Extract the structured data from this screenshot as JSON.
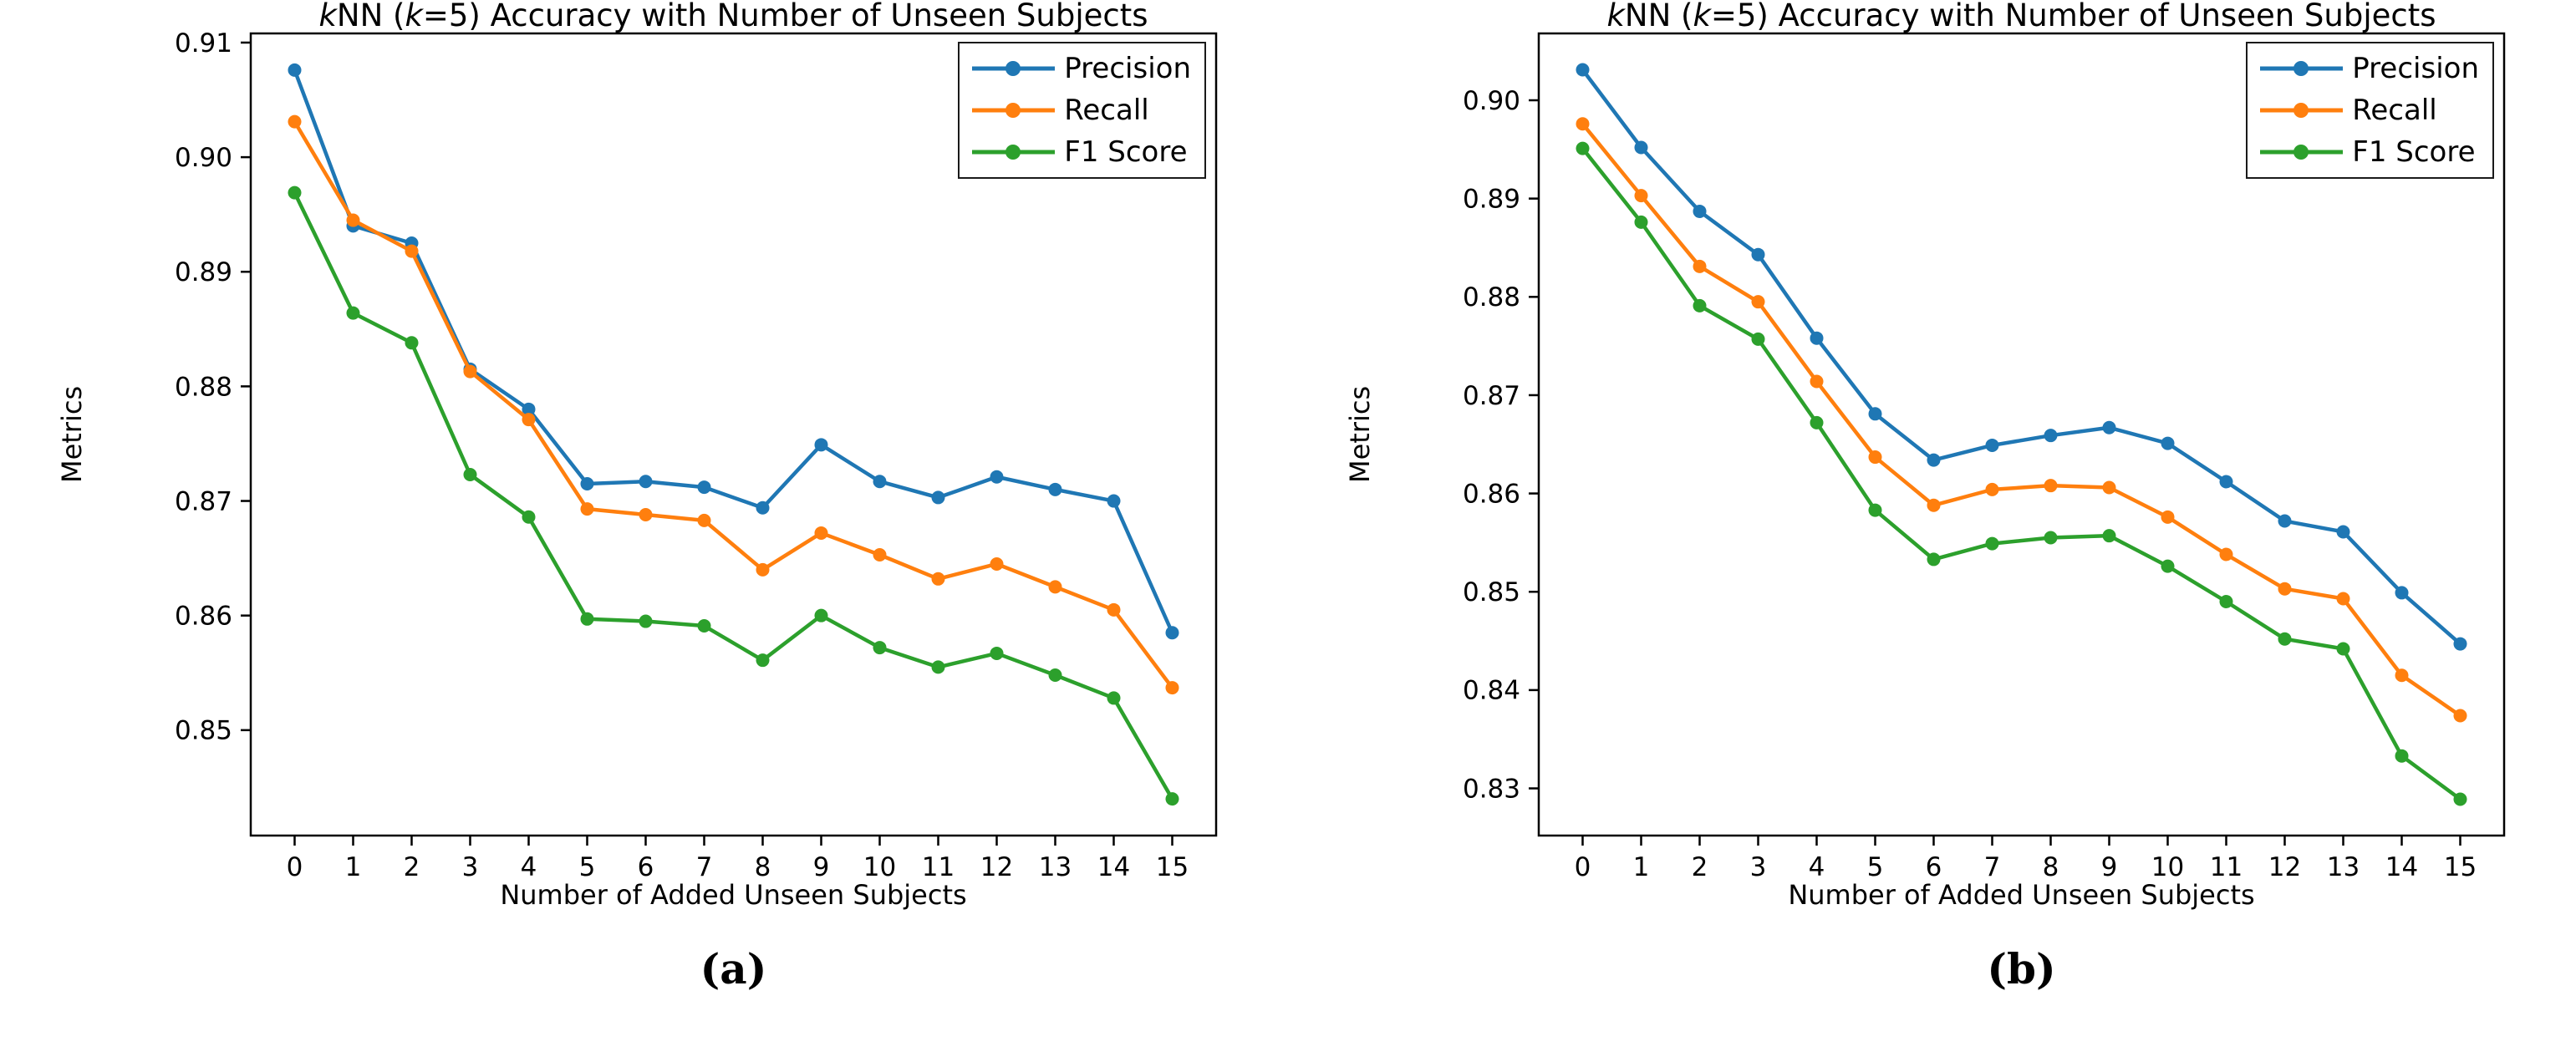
{
  "figure": {
    "background": "#ffffff",
    "text_color": "#000000",
    "axis_color": "#000000"
  },
  "chart_data": [
    {
      "id": "a",
      "type": "line",
      "title": "kNN (k=5) Accuracy with Number of Unseen Subjects",
      "title_parts": [
        {
          "text": "k",
          "italic": true
        },
        {
          "text": "NN (",
          "italic": false
        },
        {
          "text": "k",
          "italic": true
        },
        {
          "text": "=5) Accuracy with Number of Unseen Subjects",
          "italic": false
        }
      ],
      "xlabel": "Number of Added Unseen Subjects",
      "ylabel": "Metrics",
      "sublabel": "(a)",
      "x": [
        0,
        1,
        2,
        3,
        4,
        5,
        6,
        7,
        8,
        9,
        10,
        11,
        12,
        13,
        14,
        15
      ],
      "xlim": [
        -0.75,
        15.75
      ],
      "ylim": [
        0.8408,
        0.9108
      ],
      "yticks": [
        0.85,
        0.86,
        0.87,
        0.88,
        0.89,
        0.9,
        0.91
      ],
      "grid": false,
      "legend_position": "upper right",
      "series": [
        {
          "name": "Precision",
          "color": "#1f77b4",
          "marker": "circle",
          "values": [
            0.9076,
            0.894,
            0.8925,
            0.8815,
            0.878,
            0.8715,
            0.8717,
            0.8712,
            0.8694,
            0.8749,
            0.8717,
            0.8703,
            0.8721,
            0.871,
            0.87,
            0.8585
          ]
        },
        {
          "name": "Recall",
          "color": "#ff7f0e",
          "marker": "circle",
          "values": [
            0.9031,
            0.8945,
            0.8918,
            0.8813,
            0.8771,
            0.8693,
            0.8688,
            0.8683,
            0.864,
            0.8672,
            0.8653,
            0.8632,
            0.8645,
            0.8625,
            0.8605,
            0.8537
          ]
        },
        {
          "name": "F1 Score",
          "color": "#2ca02c",
          "marker": "circle",
          "values": [
            0.8969,
            0.8864,
            0.8838,
            0.8723,
            0.8686,
            0.8597,
            0.8595,
            0.8591,
            0.8561,
            0.86,
            0.8572,
            0.8555,
            0.8567,
            0.8548,
            0.8528,
            0.844
          ]
        }
      ]
    },
    {
      "id": "b",
      "type": "line",
      "title": "kNN (k=5) Accuracy with Number of Unseen Subjects",
      "title_parts": [
        {
          "text": "k",
          "italic": true
        },
        {
          "text": "NN (",
          "italic": false
        },
        {
          "text": "k",
          "italic": true
        },
        {
          "text": "=5) Accuracy with Number of Unseen Subjects",
          "italic": false
        }
      ],
      "xlabel": "Number of Added Unseen Subjects",
      "ylabel": "Metrics",
      "sublabel": "(b)",
      "x": [
        0,
        1,
        2,
        3,
        4,
        5,
        6,
        7,
        8,
        9,
        10,
        11,
        12,
        13,
        14,
        15
      ],
      "xlim": [
        -0.75,
        15.75
      ],
      "ylim": [
        0.8252,
        0.9068
      ],
      "yticks": [
        0.83,
        0.84,
        0.85,
        0.86,
        0.87,
        0.88,
        0.89,
        0.9
      ],
      "grid": false,
      "legend_position": "upper right",
      "series": [
        {
          "name": "Precision",
          "color": "#1f77b4",
          "marker": "circle",
          "values": [
            0.9031,
            0.8952,
            0.8887,
            0.8843,
            0.8758,
            0.8681,
            0.8634,
            0.8649,
            0.8659,
            0.8667,
            0.8651,
            0.8612,
            0.8572,
            0.8561,
            0.8499,
            0.8447
          ]
        },
        {
          "name": "Recall",
          "color": "#ff7f0e",
          "marker": "circle",
          "values": [
            0.8976,
            0.8903,
            0.8831,
            0.8795,
            0.8714,
            0.8637,
            0.8588,
            0.8604,
            0.8608,
            0.8606,
            0.8576,
            0.8538,
            0.8503,
            0.8493,
            0.8415,
            0.8374
          ]
        },
        {
          "name": "F1 Score",
          "color": "#2ca02c",
          "marker": "circle",
          "values": [
            0.8951,
            0.8876,
            0.8791,
            0.8757,
            0.8672,
            0.8583,
            0.8533,
            0.8549,
            0.8555,
            0.8557,
            0.8526,
            0.849,
            0.8452,
            0.8442,
            0.8333,
            0.8289
          ]
        }
      ]
    }
  ]
}
